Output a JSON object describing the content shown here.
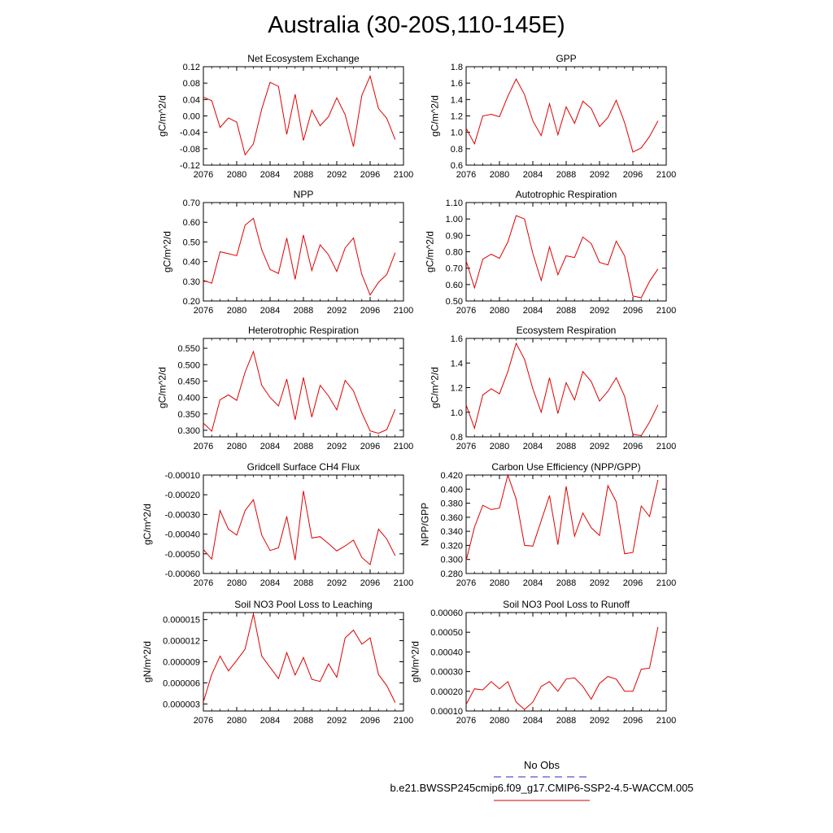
{
  "title": "Australia (30-20S,110-145E)",
  "legend": {
    "obs_label": "No Obs",
    "obs_color": "#5555cc",
    "model_label": "b.e21.BWSSP245cmip6.f09_g17.CMIP6-SSP2-4.5-WACCM.005",
    "model_color": "#dd3333"
  },
  "line_color": "#e00000",
  "chart_data": [
    {
      "type": "line",
      "title": "Net Ecosystem Exchange",
      "ylabel": "gC/m^2/d",
      "xlim": [
        2076,
        2100
      ],
      "ylim": [
        -0.12,
        0.12
      ],
      "xticks": [
        "2076",
        "2080",
        "2084",
        "2088",
        "2092",
        "2096",
        "2100"
      ],
      "yticks": [
        "-0.12",
        "-0.08",
        "-0.04",
        "0.00",
        "0.04",
        "0.08",
        "0.12"
      ],
      "x": [
        2076,
        2077,
        2078,
        2079,
        2080,
        2081,
        2082,
        2083,
        2084,
        2085,
        2086,
        2087,
        2088,
        2089,
        2090,
        2091,
        2092,
        2093,
        2094,
        2095,
        2096,
        2097,
        2098,
        2099
      ],
      "y": [
        0.046,
        0.037,
        -0.028,
        -0.005,
        -0.015,
        -0.095,
        -0.068,
        0.017,
        0.082,
        0.072,
        -0.045,
        0.053,
        -0.06,
        0.014,
        -0.024,
        -0.002,
        0.044,
        0.003,
        -0.075,
        0.05,
        0.097,
        0.018,
        -0.006,
        -0.058
      ]
    },
    {
      "type": "line",
      "title": "GPP",
      "ylabel": "gC/m^2/d",
      "xlim": [
        2076,
        2100
      ],
      "ylim": [
        0.6,
        1.8
      ],
      "xticks": [
        "2076",
        "2080",
        "2084",
        "2088",
        "2092",
        "2096",
        "2100"
      ],
      "yticks": [
        "0.6",
        "0.8",
        "1.0",
        "1.2",
        "1.4",
        "1.6",
        "1.8"
      ],
      "x": [
        2076,
        2077,
        2078,
        2079,
        2080,
        2081,
        2082,
        2083,
        2084,
        2085,
        2086,
        2087,
        2088,
        2089,
        2090,
        2091,
        2092,
        2093,
        2094,
        2095,
        2096,
        2097,
        2098,
        2099
      ],
      "y": [
        1.05,
        0.86,
        1.2,
        1.22,
        1.19,
        1.44,
        1.65,
        1.46,
        1.14,
        0.96,
        1.35,
        0.97,
        1.31,
        1.11,
        1.38,
        1.29,
        1.07,
        1.18,
        1.39,
        1.12,
        0.76,
        0.81,
        0.95,
        1.14
      ]
    },
    {
      "type": "line",
      "title": "NPP",
      "ylabel": "gC/m^2/d",
      "xlim": [
        2076,
        2100
      ],
      "ylim": [
        0.2,
        0.7
      ],
      "xticks": [
        "2076",
        "2080",
        "2084",
        "2088",
        "2092",
        "2096",
        "2100"
      ],
      "yticks": [
        "0.20",
        "0.30",
        "0.40",
        "0.50",
        "0.60",
        "0.70"
      ],
      "x": [
        2076,
        2077,
        2078,
        2079,
        2080,
        2081,
        2082,
        2083,
        2084,
        2085,
        2086,
        2087,
        2088,
        2089,
        2090,
        2091,
        2092,
        2093,
        2094,
        2095,
        2096,
        2097,
        2098,
        2099
      ],
      "y": [
        0.305,
        0.29,
        0.45,
        0.44,
        0.43,
        0.585,
        0.62,
        0.46,
        0.36,
        0.34,
        0.52,
        0.31,
        0.535,
        0.355,
        0.485,
        0.435,
        0.35,
        0.47,
        0.52,
        0.335,
        0.23,
        0.295,
        0.335,
        0.445
      ]
    },
    {
      "type": "line",
      "title": "Autotrophic Respiration",
      "ylabel": "gC/m^2/d",
      "xlim": [
        2076,
        2100
      ],
      "ylim": [
        0.5,
        1.1
      ],
      "xticks": [
        "2076",
        "2080",
        "2084",
        "2088",
        "2092",
        "2096",
        "2100"
      ],
      "yticks": [
        "0.50",
        "0.60",
        "0.70",
        "0.80",
        "0.90",
        "1.00",
        "1.10"
      ],
      "x": [
        2076,
        2077,
        2078,
        2079,
        2080,
        2081,
        2082,
        2083,
        2084,
        2085,
        2086,
        2087,
        2088,
        2089,
        2090,
        2091,
        2092,
        2093,
        2094,
        2095,
        2096,
        2097,
        2098,
        2099
      ],
      "y": [
        0.745,
        0.58,
        0.755,
        0.785,
        0.76,
        0.86,
        1.02,
        1.0,
        0.79,
        0.625,
        0.83,
        0.66,
        0.775,
        0.765,
        0.89,
        0.85,
        0.735,
        0.72,
        0.865,
        0.775,
        0.53,
        0.52,
        0.62,
        0.695
      ]
    },
    {
      "type": "line",
      "title": "Heterotrophic Respiration",
      "ylabel": "gC/m^2/d",
      "xlim": [
        2076,
        2100
      ],
      "ylim": [
        0.28,
        0.58
      ],
      "xticks": [
        "2076",
        "2080",
        "2084",
        "2088",
        "2092",
        "2096",
        "2100"
      ],
      "yticks": [
        "0.300",
        "0.350",
        "0.400",
        "0.450",
        "0.500",
        "0.550"
      ],
      "x": [
        2076,
        2077,
        2078,
        2079,
        2080,
        2081,
        2082,
        2083,
        2084,
        2085,
        2086,
        2087,
        2088,
        2089,
        2090,
        2091,
        2092,
        2093,
        2094,
        2095,
        2096,
        2097,
        2098,
        2099
      ],
      "y": [
        0.322,
        0.297,
        0.393,
        0.408,
        0.391,
        0.477,
        0.54,
        0.437,
        0.4,
        0.374,
        0.456,
        0.332,
        0.461,
        0.34,
        0.437,
        0.405,
        0.362,
        0.452,
        0.42,
        0.353,
        0.298,
        0.291,
        0.302,
        0.364
      ]
    },
    {
      "type": "line",
      "title": "Ecosystem Respiration",
      "ylabel": "gC/m^2/d",
      "xlim": [
        2076,
        2100
      ],
      "ylim": [
        0.8,
        1.6
      ],
      "xticks": [
        "2076",
        "2080",
        "2084",
        "2088",
        "2092",
        "2096",
        "2100"
      ],
      "yticks": [
        "0.8",
        "1.0",
        "1.2",
        "1.4",
        "1.6"
      ],
      "x": [
        2076,
        2077,
        2078,
        2079,
        2080,
        2081,
        2082,
        2083,
        2084,
        2085,
        2086,
        2087,
        2088,
        2089,
        2090,
        2091,
        2092,
        2093,
        2094,
        2095,
        2096,
        2097,
        2098,
        2099
      ],
      "y": [
        1.06,
        0.87,
        1.14,
        1.19,
        1.15,
        1.33,
        1.56,
        1.43,
        1.19,
        1.0,
        1.28,
        0.99,
        1.24,
        1.1,
        1.33,
        1.25,
        1.09,
        1.17,
        1.28,
        1.13,
        0.82,
        0.81,
        0.92,
        1.06
      ]
    },
    {
      "type": "line",
      "title": "Gridcell Surface CH4 Flux",
      "ylabel": "gC/m^2/d",
      "xlim": [
        2076,
        2100
      ],
      "ylim": [
        -0.0006,
        -0.0001
      ],
      "xticks": [
        "2076",
        "2080",
        "2084",
        "2088",
        "2092",
        "2096",
        "2100"
      ],
      "yticks": [
        "-0.00060",
        "-0.00050",
        "-0.00040",
        "-0.00030",
        "-0.00020",
        "-0.00010"
      ],
      "x": [
        2076,
        2077,
        2078,
        2079,
        2080,
        2081,
        2082,
        2083,
        2084,
        2085,
        2086,
        2087,
        2088,
        2089,
        2090,
        2091,
        2092,
        2093,
        2094,
        2095,
        2096,
        2097,
        2098,
        2099
      ],
      "y": [
        -0.000478,
        -0.000527,
        -0.00028,
        -0.000375,
        -0.000405,
        -0.00028,
        -0.000225,
        -0.000405,
        -0.000483,
        -0.00047,
        -0.00031,
        -0.000532,
        -0.00018,
        -0.00042,
        -0.000413,
        -0.000448,
        -0.000485,
        -0.00046,
        -0.00043,
        -0.000518,
        -0.000555,
        -0.000375,
        -0.000425,
        -0.00051
      ]
    },
    {
      "type": "line",
      "title": "Carbon Use Efficiency (NPP/GPP)",
      "ylabel": "NPP/GPP",
      "xlim": [
        2076,
        2100
      ],
      "ylim": [
        0.28,
        0.42
      ],
      "xticks": [
        "2076",
        "2080",
        "2084",
        "2088",
        "2092",
        "2096",
        "2100"
      ],
      "yticks": [
        "0.280",
        "0.300",
        "0.320",
        "0.340",
        "0.360",
        "0.380",
        "0.400",
        "0.420"
      ],
      "x": [
        2076,
        2077,
        2078,
        2079,
        2080,
        2081,
        2082,
        2083,
        2084,
        2085,
        2086,
        2087,
        2088,
        2089,
        2090,
        2091,
        2092,
        2093,
        2094,
        2095,
        2096,
        2097,
        2098,
        2099
      ],
      "y": [
        0.298,
        0.346,
        0.377,
        0.371,
        0.373,
        0.42,
        0.386,
        0.32,
        0.319,
        0.355,
        0.391,
        0.321,
        0.404,
        0.333,
        0.366,
        0.345,
        0.334,
        0.405,
        0.382,
        0.308,
        0.31,
        0.376,
        0.361,
        0.413
      ]
    },
    {
      "type": "line",
      "title": "Soil NO3 Pool Loss to Leaching",
      "ylabel": "gN/m^2/d",
      "xlim": [
        2076,
        2100
      ],
      "ylim": [
        2e-06,
        1.6e-05
      ],
      "xticks": [
        "2076",
        "2080",
        "2084",
        "2088",
        "2092",
        "2096",
        "2100"
      ],
      "yticks": [
        "0.000003",
        "0.000006",
        "0.000009",
        "0.000012",
        "0.000015"
      ],
      "x": [
        2076,
        2077,
        2078,
        2079,
        2080,
        2081,
        2082,
        2083,
        2084,
        2085,
        2086,
        2087,
        2088,
        2089,
        2090,
        2091,
        2092,
        2093,
        2094,
        2095,
        2096,
        2097,
        2098,
        2099
      ],
      "y": [
        3.3e-06,
        7.2e-06,
        9.8e-06,
        7.7e-06,
        9.2e-06,
        1.08e-05,
        1.58e-05,
        9.8e-06,
        8.2e-06,
        6.6e-06,
        1.03e-05,
        7.1e-06,
        9.6e-06,
        6.5e-06,
        6.2e-06,
        8.7e-06,
        6.8e-06,
        1.24e-05,
        1.35e-05,
        1.15e-05,
        1.24e-05,
        7.2e-06,
        5.6e-06,
        3.2e-06
      ]
    },
    {
      "type": "line",
      "title": "Soil NO3 Pool Loss to Runoff",
      "ylabel": "gN/m^2/d",
      "xlim": [
        2076,
        2100
      ],
      "ylim": [
        0.0001,
        0.0006
      ],
      "xticks": [
        "2076",
        "2080",
        "2084",
        "2088",
        "2092",
        "2096",
        "2100"
      ],
      "yticks": [
        "0.00010",
        "0.00020",
        "0.00030",
        "0.00040",
        "0.00050",
        "0.00060"
      ],
      "x": [
        2076,
        2077,
        2078,
        2079,
        2080,
        2081,
        2082,
        2083,
        2084,
        2085,
        2086,
        2087,
        2088,
        2089,
        2090,
        2091,
        2092,
        2093,
        2094,
        2095,
        2096,
        2097,
        2098,
        2099
      ],
      "y": [
        0.000133,
        0.000213,
        0.000207,
        0.000249,
        0.000213,
        0.000249,
        0.000145,
        0.000108,
        0.000145,
        0.000225,
        0.000249,
        0.0002,
        0.000262,
        0.000268,
        0.000225,
        0.00016,
        0.00024,
        0.000275,
        0.000262,
        0.0002,
        0.0002,
        0.000312,
        0.000318,
        0.000527
      ]
    }
  ]
}
